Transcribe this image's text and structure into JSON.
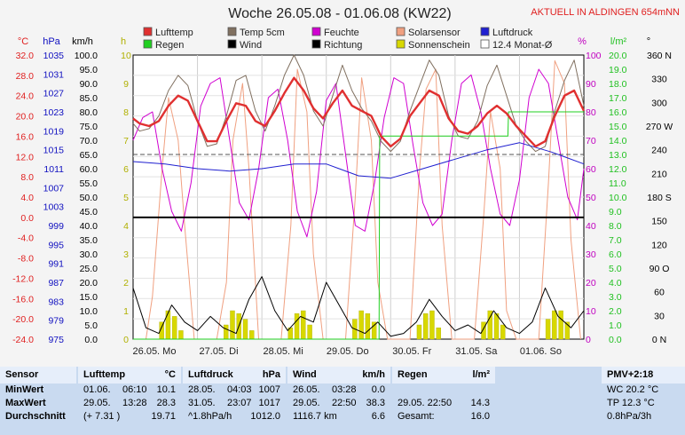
{
  "chart_data": {
    "type": "line",
    "title": "Woche 26.05.08 - 01.06.08 (KW22)",
    "header_tag": "AKTUELL IN ALDINGEN 654mNN",
    "x_days": [
      "26.05. Mo",
      "27.05. Di",
      "28.05. Mi",
      "29.05. Do",
      "30.05. Fr",
      "31.05. Sa",
      "01.06. So"
    ],
    "axes": {
      "temp_c": {
        "label": "°C",
        "color": "#e02020",
        "ticks": [
          "32.0",
          "28.0",
          "24.0",
          "20.0",
          "16.0",
          "12.0",
          "8.0",
          "4.0",
          "0.0",
          "-4.0",
          "-8.0",
          "-12.0",
          "-16.0",
          "-20.0",
          "-24.0"
        ]
      },
      "pressure": {
        "label": "hPa",
        "color": "#1010c0",
        "ticks": [
          "1035",
          "1031",
          "1027",
          "1023",
          "1019",
          "1015",
          "1011",
          "1007",
          "1003",
          "999",
          "995",
          "991",
          "987",
          "983",
          "979",
          "975"
        ]
      },
      "wind_kmh": {
        "label": "km/h",
        "color": "#000000",
        "ticks": [
          "100.0",
          "95.0",
          "90.0",
          "85.0",
          "80.0",
          "75.0",
          "70.0",
          "65.0",
          "60.0",
          "55.0",
          "50.0",
          "45.0",
          "40.0",
          "35.0",
          "30.0",
          "25.0",
          "20.0",
          "15.0",
          "10.0",
          "5.0",
          "0.0"
        ]
      },
      "sun_h": {
        "label": "h",
        "color": "#b0b000",
        "ticks": [
          "10",
          "9",
          "8",
          "7",
          "6",
          "5",
          "4",
          "3",
          "2",
          "1",
          "0"
        ]
      },
      "humidity": {
        "label": "%",
        "color": "#c000c0",
        "ticks": [
          "100",
          "90",
          "80",
          "70",
          "60",
          "50",
          "40",
          "30",
          "20",
          "10",
          "0"
        ]
      },
      "rain_l": {
        "label": "l/m²",
        "color": "#20c020",
        "ticks": [
          "20.0",
          "19.0",
          "18.0",
          "17.0",
          "16.0",
          "15.0",
          "14.0",
          "13.0",
          "12.0",
          "11.0",
          "10.0",
          "9.0",
          "8.0",
          "7.0",
          "6.0",
          "5.0",
          "4.0",
          "3.0",
          "2.0",
          "1.0",
          "0.0"
        ]
      },
      "direction": {
        "label": "°",
        "color": "#000000",
        "ticks": [
          "360 N",
          "330",
          "300",
          "270 W",
          "240",
          "210",
          "180 S",
          "150",
          "120",
          "90 O",
          "60",
          "30",
          "0 N"
        ]
      }
    },
    "legend": [
      {
        "name": "Lufttemp",
        "color": "#e03030"
      },
      {
        "name": "Temp 5cm",
        "color": "#807060"
      },
      {
        "name": "Feuchte",
        "color": "#d000d0"
      },
      {
        "name": "Solarsensor",
        "color": "#f0a080"
      },
      {
        "name": "Luftdruck",
        "color": "#2020d0"
      },
      {
        "name": "Regen",
        "color": "#20d020"
      },
      {
        "name": "Wind",
        "color": "#000000"
      },
      {
        "name": "Richtung",
        "color": "#000000"
      },
      {
        "name": "Sonnenschein",
        "color": "#d8d800"
      },
      {
        "name": "12.4 Monat-Ø",
        "color": "#ffffff"
      }
    ],
    "reference_lines": [
      {
        "name": "12.4 Monat-Ø",
        "axis": "temp_c",
        "value": 12.4
      },
      {
        "name": "0 °C",
        "axis": "temp_c",
        "value": 0
      }
    ],
    "series": [
      {
        "name": "Lufttemp",
        "axis": "temp_c",
        "x": [
          0,
          0.1,
          0.25,
          0.4,
          0.55,
          0.7,
          0.85,
          1.0,
          1.15,
          1.3,
          1.45,
          1.6,
          1.75,
          1.9,
          2.05,
          2.2,
          2.35,
          2.5,
          2.65,
          2.8,
          2.95,
          3.1,
          3.25,
          3.4,
          3.55,
          3.7,
          3.85,
          4.0,
          4.15,
          4.3,
          4.45,
          4.6,
          4.75,
          4.9,
          5.05,
          5.2,
          5.35,
          5.5,
          5.65,
          5.8,
          5.95,
          6.1,
          6.25,
          6.4,
          6.55,
          6.7,
          6.85,
          7.0
        ],
        "y": [
          19.5,
          18.5,
          18.0,
          19.0,
          22.0,
          24.0,
          23.0,
          19.0,
          15.0,
          15.0,
          19.0,
          22.5,
          22.0,
          19.0,
          18.0,
          21.0,
          24.5,
          27.5,
          25.0,
          21.5,
          19.5,
          22.5,
          25.0,
          22.0,
          21.0,
          20.0,
          16.0,
          14.0,
          15.5,
          20.0,
          22.5,
          25.0,
          24.0,
          19.5,
          17.0,
          16.5,
          18.0,
          20.5,
          22.0,
          20.5,
          18.0,
          16.0,
          14.0,
          15.0,
          20.0,
          24.0,
          25.0,
          21.0
        ]
      },
      {
        "name": "Temp 5cm",
        "axis": "temp_c",
        "x": [
          0,
          0.1,
          0.25,
          0.4,
          0.55,
          0.7,
          0.85,
          1.0,
          1.15,
          1.3,
          1.45,
          1.6,
          1.75,
          1.9,
          2.05,
          2.2,
          2.35,
          2.5,
          2.65,
          2.8,
          2.95,
          3.1,
          3.25,
          3.4,
          3.55,
          3.7,
          3.85,
          4.0,
          4.15,
          4.3,
          4.45,
          4.6,
          4.75,
          4.9,
          5.05,
          5.2,
          5.35,
          5.5,
          5.65,
          5.8,
          5.95,
          6.1,
          6.25,
          6.4,
          6.55,
          6.7,
          6.85,
          7.0
        ],
        "y": [
          18.5,
          17.0,
          17.5,
          20.0,
          25.0,
          28.0,
          26.0,
          19.0,
          14.0,
          14.5,
          20.0,
          27.0,
          28.0,
          21.0,
          17.0,
          22.0,
          28.0,
          32.0,
          28.0,
          21.0,
          18.0,
          24.0,
          30.0,
          25.0,
          21.5,
          19.0,
          15.0,
          13.0,
          15.0,
          21.0,
          26.0,
          31.0,
          28.0,
          20.0,
          16.0,
          15.5,
          19.0,
          26.0,
          30.0,
          24.0,
          18.0,
          15.0,
          13.0,
          14.0,
          21.0,
          27.0,
          31.0,
          22.0
        ]
      },
      {
        "name": "Feuchte",
        "axis": "humidity",
        "x": [
          0,
          0.15,
          0.3,
          0.45,
          0.6,
          0.75,
          0.9,
          1.05,
          1.2,
          1.35,
          1.5,
          1.65,
          1.8,
          1.95,
          2.1,
          2.25,
          2.4,
          2.55,
          2.7,
          2.85,
          3.0,
          3.15,
          3.3,
          3.45,
          3.6,
          3.75,
          3.9,
          4.05,
          4.2,
          4.35,
          4.5,
          4.65,
          4.8,
          4.95,
          5.1,
          5.25,
          5.4,
          5.55,
          5.7,
          5.85,
          6.0,
          6.15,
          6.3,
          6.45,
          6.6,
          6.75,
          6.9,
          7.0
        ],
        "y": [
          70,
          78,
          80,
          60,
          45,
          38,
          55,
          82,
          90,
          92,
          70,
          48,
          42,
          60,
          85,
          88,
          70,
          45,
          36,
          52,
          84,
          90,
          65,
          40,
          38,
          55,
          78,
          92,
          90,
          68,
          48,
          40,
          44,
          70,
          90,
          93,
          80,
          60,
          44,
          40,
          56,
          85,
          95,
          90,
          70,
          50,
          42,
          60
        ]
      },
      {
        "name": "Solarsensor",
        "axis": "humidity",
        "x": [
          0,
          0.2,
          0.3,
          0.45,
          0.55,
          0.7,
          0.8,
          0.95,
          1.15,
          1.3,
          1.45,
          1.55,
          1.7,
          1.8,
          1.95,
          2.15,
          2.3,
          2.45,
          2.55,
          2.7,
          2.8,
          2.95,
          3.15,
          3.3,
          3.45,
          3.55,
          3.7,
          3.8,
          3.95,
          4.15,
          4.3,
          4.45,
          4.55,
          4.7,
          4.8,
          4.95,
          5.15,
          5.3,
          5.45,
          5.55,
          5.7,
          5.8,
          5.95,
          6.15,
          6.3,
          6.45,
          6.55,
          6.7,
          6.8,
          6.95
        ],
        "y": [
          0,
          0,
          15,
          60,
          85,
          70,
          40,
          0,
          0,
          0,
          20,
          70,
          90,
          60,
          0,
          0,
          0,
          40,
          95,
          80,
          30,
          0,
          0,
          0,
          50,
          92,
          70,
          20,
          0,
          0,
          0,
          60,
          88,
          95,
          40,
          0,
          0,
          0,
          45,
          80,
          60,
          10,
          0,
          0,
          0,
          55,
          98,
          90,
          35,
          0
        ]
      },
      {
        "name": "Luftdruck",
        "axis": "pressure",
        "x": [
          0,
          0.5,
          1.0,
          1.5,
          2.0,
          2.5,
          3.0,
          3.5,
          4.0,
          4.5,
          5.0,
          5.5,
          6.0,
          6.5,
          7.0
        ],
        "y": [
          1012.5,
          1012.0,
          1011.0,
          1010.5,
          1011.0,
          1012.0,
          1012.0,
          1009.5,
          1009.0,
          1011.0,
          1013.0,
          1015.0,
          1016.5,
          1014.5,
          1012.0
        ]
      },
      {
        "name": "Regen",
        "axis": "rain_l",
        "x": [
          0,
          3.82,
          3.83,
          4.0,
          4.5,
          5.0,
          5.5,
          5.82,
          5.83,
          6.0,
          6.5,
          7.0
        ],
        "y": [
          0,
          0,
          14.3,
          14.3,
          14.3,
          14.3,
          14.3,
          14.3,
          16.0,
          16.0,
          16.0,
          16.0
        ]
      },
      {
        "name": "Wind",
        "axis": "wind_kmh",
        "x": [
          0,
          0.2,
          0.4,
          0.6,
          0.8,
          1.0,
          1.2,
          1.4,
          1.6,
          1.8,
          2.0,
          2.2,
          2.4,
          2.6,
          2.8,
          3.0,
          3.2,
          3.4,
          3.6,
          3.8,
          4.0,
          4.2,
          4.4,
          4.6,
          4.8,
          5.0,
          5.2,
          5.4,
          5.6,
          5.8,
          6.0,
          6.2,
          6.4,
          6.6,
          6.8,
          7.0
        ],
        "y": [
          18,
          4,
          2,
          12,
          6,
          3,
          8,
          4,
          2,
          14,
          22,
          10,
          3,
          8,
          6,
          20,
          12,
          4,
          2,
          6,
          1,
          2,
          6,
          14,
          8,
          3,
          5,
          2,
          10,
          4,
          2,
          6,
          18,
          8,
          4,
          10
        ]
      },
      {
        "name": "Sonnenschein",
        "axis": "sun_h",
        "x": [
          0.45,
          0.55,
          0.65,
          0.75,
          1.45,
          1.55,
          1.65,
          1.75,
          1.85,
          2.45,
          2.55,
          2.65,
          2.75,
          3.45,
          3.55,
          3.65,
          3.75,
          4.45,
          4.55,
          4.65,
          4.75,
          5.45,
          5.55,
          5.65,
          5.75,
          6.45,
          6.55,
          6.65,
          6.75
        ],
        "y": [
          0.6,
          1.0,
          0.8,
          0.3,
          0.5,
          1.0,
          0.9,
          0.7,
          0.3,
          0.4,
          0.9,
          1.0,
          0.5,
          0.7,
          1.0,
          0.9,
          0.6,
          0.5,
          0.9,
          1.0,
          0.4,
          0.6,
          1.0,
          0.9,
          0.5,
          0.7,
          1.0,
          1.0,
          0.6
        ]
      }
    ]
  },
  "table": {
    "sensor": {
      "header": "Sensor",
      "rows": [
        "MinWert",
        "MaxWert",
        "Durchschnitt"
      ]
    },
    "lufttemp": {
      "header": "Lufttemp",
      "unit": "°C",
      "rows": [
        [
          "01.06.",
          "06:10",
          "10.1"
        ],
        [
          "29.05.",
          "13:28",
          "28.3"
        ],
        [
          "(+ 7.31 )",
          "",
          "19.71"
        ]
      ]
    },
    "luftdruck": {
      "header": "Luftdruck",
      "unit": "hPa",
      "rows": [
        [
          "28.05.",
          "04:03",
          "1007"
        ],
        [
          "31.05.",
          "23:07",
          "1017"
        ],
        [
          "^1.8hPa/h",
          "",
          "1012.0"
        ]
      ]
    },
    "wind": {
      "header": "Wind",
      "unit": "km/h",
      "rows": [
        [
          "26.05.",
          "03:28",
          "0.0"
        ],
        [
          "29.05.",
          "22:50",
          "38.3"
        ],
        [
          "1116.7 km",
          "",
          "6.6"
        ]
      ]
    },
    "regen": {
      "header": "Regen",
      "unit": "l/m²",
      "rows": [
        [
          "",
          ""
        ],
        [
          "29.05.  22:50",
          "14.3"
        ],
        [
          "Gesamt:",
          "16.0"
        ]
      ]
    },
    "pmv": {
      "header": "PMV+2:18",
      "rows": [
        "WC 20.2 °C",
        "TP 12.3 °C",
        "0.8hPa/3h"
      ]
    }
  }
}
